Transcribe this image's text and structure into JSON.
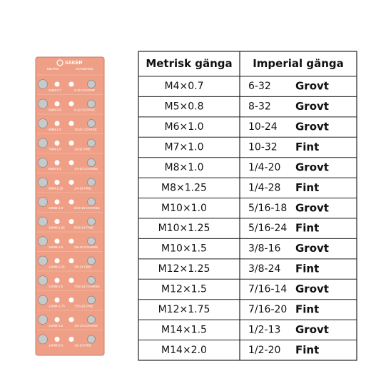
{
  "plate": {
    "brand": "SAKER",
    "header_left": "METRIC",
    "header_right": "STANDARD",
    "labels": [
      [
        "4MM-0.7",
        "6-32 COARSE"
      ],
      [
        "5MM-0.8",
        "8-32 COARSE"
      ],
      [
        "6MM-1.0",
        "10-24 COARSE"
      ],
      [
        "7MM-1.0",
        "10-32 FINE"
      ],
      [
        "8MM-1.0",
        "1/4-20 COARSE"
      ],
      [
        "8MM-1.25",
        "1/4-28 FINE"
      ],
      [
        "10MM-1.0",
        "5/16-18 COARSE"
      ],
      [
        "10MM-1.25",
        "5/16-24 FINE"
      ],
      [
        "10MM-1.5",
        "3/8-16 COARSE"
      ],
      [
        "12MM-1.25",
        "3/8-24 FINE"
      ],
      [
        "12MM-1.5",
        "7/16-14 COARSE"
      ],
      [
        "12MM-1.75",
        "7/16-20 FINE"
      ],
      [
        "14MM-1.5",
        "1/2-13 COARSE"
      ],
      [
        "14MM-2.0",
        "1/2-20 FINE"
      ]
    ]
  },
  "table": {
    "header": [
      "Metrisk gänga",
      "Imperial gänga"
    ],
    "rows": [
      [
        "M4×0.7",
        "6-32",
        "Grovt"
      ],
      [
        "M5×0.8",
        "8-32",
        "Grovt"
      ],
      [
        "M6×1.0",
        "10-24",
        "Grovt"
      ],
      [
        "M7×1.0",
        "10-32",
        "Fint"
      ],
      [
        "M8×1.0",
        "1/4-20",
        "Grovt"
      ],
      [
        "M8×1.25",
        "1/4-28",
        "Fint"
      ],
      [
        "M10×1.0",
        "5/16-18",
        "Grovt"
      ],
      [
        "M10×1.25",
        "5/16-24",
        "Fint"
      ],
      [
        "M10×1.5",
        "3/8-16",
        "Grovt"
      ],
      [
        "M12×1.25",
        "3/8-24",
        "Fint"
      ],
      [
        "M12×1.5",
        "7/16-14",
        "Grovt"
      ],
      [
        "M12×1.75",
        "7/16-20",
        "Fint"
      ],
      [
        "M14×1.5",
        "1/2-13",
        "Grovt"
      ],
      [
        "M14×2.0",
        "1/2-20",
        "Fint"
      ]
    ]
  }
}
